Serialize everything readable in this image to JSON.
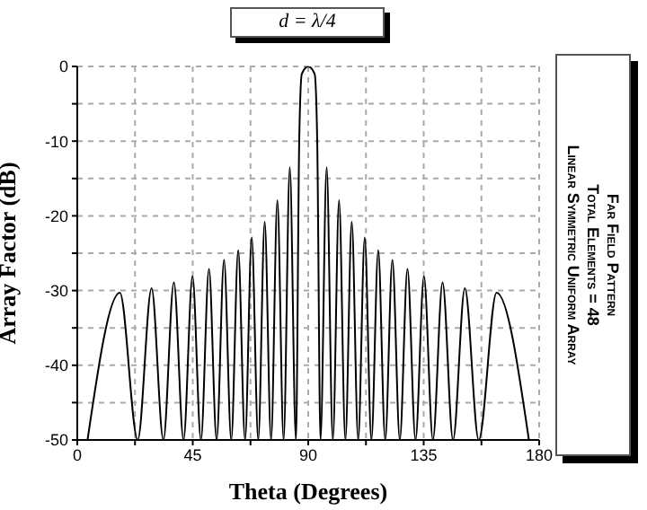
{
  "chart_data": {
    "type": "line",
    "title": "d = λ/4",
    "xlabel": "Theta (Degrees)",
    "ylabel": "Array Factor (dB)",
    "annotations": [
      "Far Field Pattern",
      "Total Elements = 48",
      "Linear Symmetric Uniform Array"
    ],
    "x": [
      4,
      16.6,
      23.56,
      28.96,
      33.56,
      37.65,
      41.41,
      44.9,
      48.19,
      51.32,
      54.31,
      57.2,
      60,
      62.72,
      65.38,
      67.98,
      70.53,
      73.04,
      75.52,
      77.98,
      80.41,
      82.82,
      85.22,
      86.5,
      87.5,
      90,
      92.5,
      93.5,
      94.78,
      97.18,
      99.59,
      102.02,
      104.48,
      106.96,
      109.47,
      112.02,
      114.62,
      117.28,
      120,
      122.8,
      125.69,
      128.68,
      131.81,
      135.1,
      138.59,
      142.35,
      146.44,
      151.04,
      156.44,
      163.4,
      176
    ],
    "series": [
      {
        "color": "#000000",
        "values": [
          -50,
          -30.3,
          -50,
          -29.7,
          -50,
          -28.9,
          -50,
          -28.1,
          -50,
          -27.1,
          -50,
          -25.9,
          -50,
          -24.6,
          -50,
          -22.9,
          -50,
          -20.8,
          -50,
          -17.9,
          -50,
          -13.5,
          -50,
          -9.8,
          -1,
          0,
          -1,
          -9.8,
          -50,
          -13.5,
          -50,
          -17.9,
          -50,
          -20.8,
          -50,
          -22.9,
          -50,
          -24.6,
          -50,
          -25.9,
          -50,
          -27.1,
          -50,
          -28.1,
          -50,
          -28.9,
          -50,
          -29.7,
          -50,
          -30.3,
          -50
        ]
      }
    ],
    "xlim": [
      0,
      180
    ],
    "xticks": [
      0,
      {
        "value": 22.5,
        "label": null
      },
      45,
      {
        "value": 67.5,
        "label": null
      },
      90,
      {
        "value": 112.5,
        "label": null
      },
      135,
      {
        "value": 157.5,
        "label": null
      },
      180
    ],
    "ylim": [
      -50,
      0
    ],
    "yticks": [
      -50,
      {
        "value": -45,
        "label": null
      },
      -40,
      {
        "value": -35,
        "label": null
      },
      -30,
      {
        "value": -25,
        "label": null
      },
      -20,
      {
        "value": -15,
        "label": null
      },
      -10,
      {
        "value": -5,
        "label": null
      },
      0
    ],
    "grid": true,
    "legend": false,
    "marker": "none",
    "line_style": "solid"
  }
}
